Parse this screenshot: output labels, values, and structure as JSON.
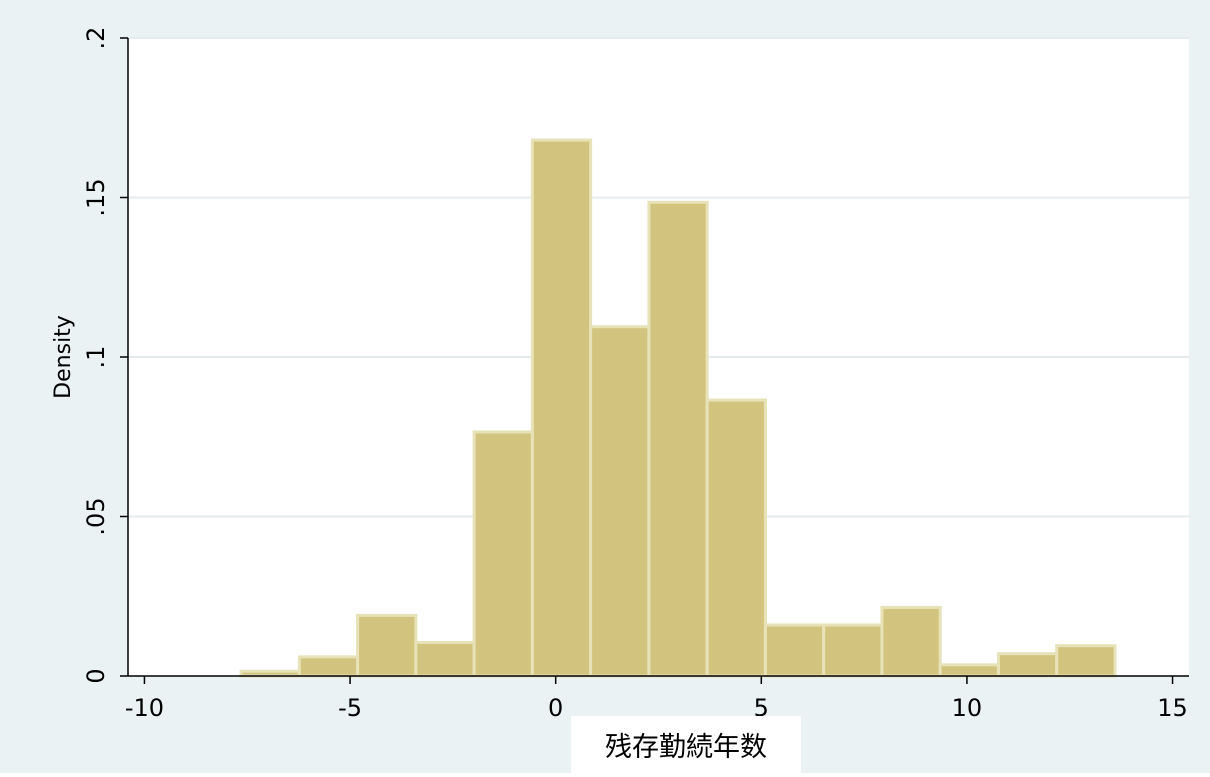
{
  "chart_data": {
    "type": "bar",
    "title": "",
    "xlabel": "残存勤続年数",
    "ylabel": "Density",
    "xlim": [
      -10.4,
      15.4
    ],
    "ylim": [
      0,
      0.2
    ],
    "x_ticks": [
      -10,
      -5,
      0,
      5,
      10,
      15
    ],
    "x_tick_labels": [
      "-10",
      "-5",
      "0",
      "5",
      "10",
      "15"
    ],
    "y_ticks": [
      0,
      0.05,
      0.1,
      0.15,
      0.2
    ],
    "y_tick_labels": [
      "0",
      ".05",
      ".1",
      ".15",
      ".2"
    ],
    "grid": true,
    "bin_width": 1.417,
    "bins": [
      {
        "x0": -7.65,
        "value": 0.0015
      },
      {
        "x0": -6.233,
        "value": 0.006
      },
      {
        "x0": -4.817,
        "value": 0.019
      },
      {
        "x0": -3.4,
        "value": 0.0105
      },
      {
        "x0": -1.983,
        "value": 0.0765
      },
      {
        "x0": -0.567,
        "value": 0.168
      },
      {
        "x0": 0.85,
        "value": 0.1095
      },
      {
        "x0": 2.267,
        "value": 0.1485
      },
      {
        "x0": 3.683,
        "value": 0.0865
      },
      {
        "x0": 5.1,
        "value": 0.016
      },
      {
        "x0": 6.517,
        "value": 0.016
      },
      {
        "x0": 7.933,
        "value": 0.0215
      },
      {
        "x0": 9.35,
        "value": 0.0035
      },
      {
        "x0": 10.767,
        "value": 0.007
      },
      {
        "x0": 12.183,
        "value": 0.0095
      }
    ]
  },
  "colors": {
    "background": "#eaf2f3",
    "plot_area": "#ffffff",
    "bar_fill": "#d2c47f",
    "bar_stroke": "#e8e2b8",
    "grid": "#e4ecee",
    "axis": "#000000"
  }
}
